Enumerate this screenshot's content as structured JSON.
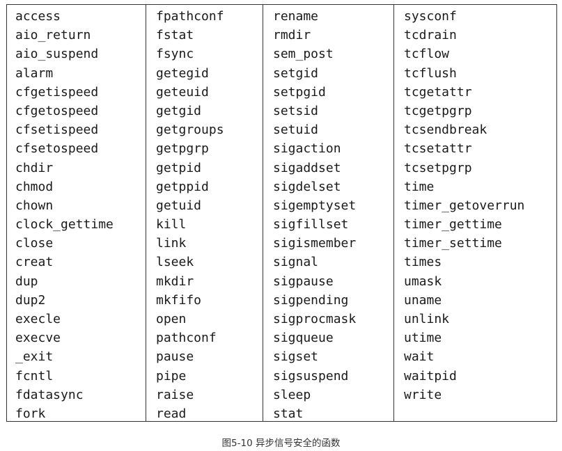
{
  "columns": [
    [
      "access",
      "aio_return",
      "aio_suspend",
      "alarm",
      "cfgetispeed",
      "cfgetospeed",
      "cfsetispeed",
      "cfsetospeed",
      "chdir",
      "chmod",
      "chown",
      "clock_gettime",
      "close",
      "creat",
      "dup",
      "dup2",
      "execle",
      "execve",
      "_exit",
      "fcntl",
      "fdatasync",
      "fork"
    ],
    [
      "fpathconf",
      "fstat",
      "fsync",
      "getegid",
      "geteuid",
      "getgid",
      "getgroups",
      "getpgrp",
      "getpid",
      "getppid",
      "getuid",
      "kill",
      "link",
      "lseek",
      "mkdir",
      "mkfifo",
      "open",
      "pathconf",
      "pause",
      "pipe",
      "raise",
      "read"
    ],
    [
      "rename",
      "rmdir",
      "sem_post",
      "setgid",
      "setpgid",
      "setsid",
      "setuid",
      "sigaction",
      "sigaddset",
      "sigdelset",
      "sigemptyset",
      "sigfillset",
      "sigismember",
      "signal",
      "sigpause",
      "sigpending",
      "sigprocmask",
      "sigqueue",
      "sigset",
      "sigsuspend",
      "sleep",
      "stat"
    ],
    [
      "sysconf",
      "tcdrain",
      "tcflow",
      "tcflush",
      "tcgetattr",
      "tcgetpgrp",
      "tcsendbreak",
      "tcsetattr",
      "tcsetpgrp",
      "time",
      "timer_getoverrun",
      "timer_gettime",
      "timer_settime",
      "times",
      "umask",
      "uname",
      "unlink",
      "utime",
      "wait",
      "waitpid",
      "write"
    ]
  ],
  "caption": "图5-10 异步信号安全的函数"
}
